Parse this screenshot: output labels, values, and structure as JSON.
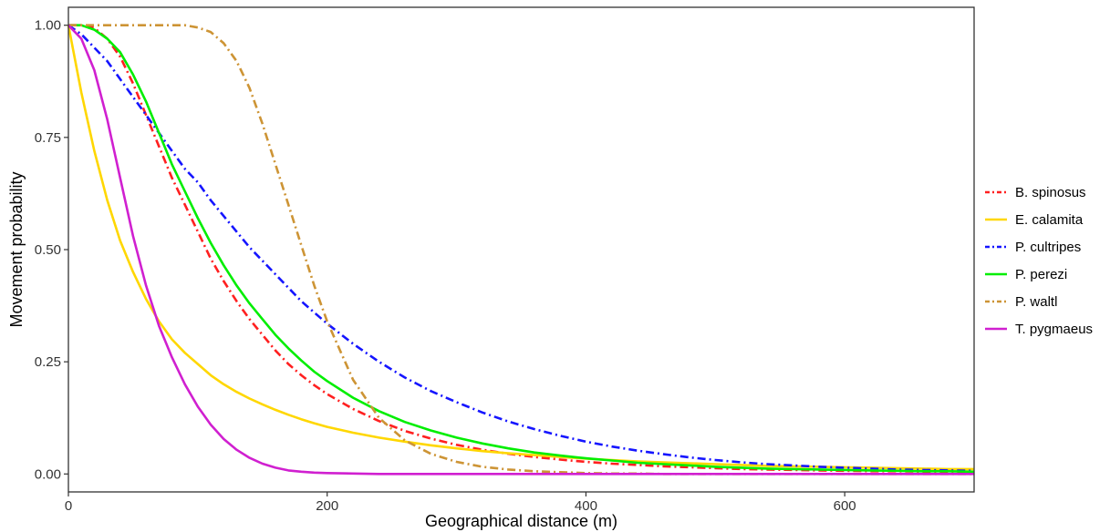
{
  "chart_data": {
    "type": "line",
    "title": "",
    "xlabel": "Geographical distance (m)",
    "ylabel": "Movement probability",
    "xlim": [
      0,
      700
    ],
    "ylim": [
      -0.04,
      1.04
    ],
    "xticks": [
      0,
      200,
      400,
      600
    ],
    "xtick_labels": [
      "0",
      "200",
      "400",
      "600"
    ],
    "yticks": [
      0,
      0.25,
      0.5,
      0.75,
      1.0
    ],
    "ytick_labels": [
      "0.00",
      "0.25",
      "0.50",
      "0.75",
      "1.00"
    ],
    "grid": false,
    "legend_position": "right",
    "x": [
      0,
      10,
      20,
      30,
      40,
      50,
      60,
      70,
      80,
      90,
      100,
      110,
      120,
      130,
      140,
      150,
      160,
      170,
      180,
      190,
      200,
      220,
      240,
      260,
      280,
      300,
      320,
      340,
      360,
      380,
      400,
      420,
      440,
      460,
      480,
      500,
      520,
      540,
      560,
      580,
      600,
      620,
      640,
      660,
      680,
      700
    ],
    "series": [
      {
        "name": "B. spinosus",
        "color": "#ff2020",
        "dash": "dashdot",
        "values": [
          1.0,
          1.0,
          0.994,
          0.97,
          0.93,
          0.87,
          0.8,
          0.73,
          0.66,
          0.6,
          0.54,
          0.48,
          0.43,
          0.385,
          0.345,
          0.31,
          0.275,
          0.245,
          0.22,
          0.198,
          0.178,
          0.145,
          0.118,
          0.096,
          0.079,
          0.065,
          0.054,
          0.045,
          0.038,
          0.032,
          0.027,
          0.023,
          0.02,
          0.017,
          0.015,
          0.013,
          0.011,
          0.01,
          0.009,
          0.008,
          0.007,
          0.006,
          0.006,
          0.005,
          0.005,
          0.005
        ]
      },
      {
        "name": "E. calamita",
        "color": "#ffd700",
        "dash": "solid",
        "values": [
          1.0,
          0.85,
          0.72,
          0.61,
          0.52,
          0.45,
          0.39,
          0.34,
          0.3,
          0.27,
          0.245,
          0.22,
          0.2,
          0.183,
          0.168,
          0.155,
          0.143,
          0.132,
          0.122,
          0.113,
          0.105,
          0.092,
          0.081,
          0.072,
          0.064,
          0.057,
          0.051,
          0.046,
          0.042,
          0.038,
          0.034,
          0.031,
          0.028,
          0.026,
          0.024,
          0.022,
          0.02,
          0.018,
          0.017,
          0.016,
          0.015,
          0.014,
          0.013,
          0.012,
          0.011,
          0.011
        ]
      },
      {
        "name": "P. cultripes",
        "color": "#1515ff",
        "dash": "dashdot",
        "values": [
          1.0,
          0.98,
          0.95,
          0.92,
          0.88,
          0.84,
          0.8,
          0.76,
          0.72,
          0.68,
          0.65,
          0.61,
          0.575,
          0.54,
          0.505,
          0.475,
          0.445,
          0.415,
          0.385,
          0.36,
          0.335,
          0.29,
          0.25,
          0.215,
          0.185,
          0.16,
          0.137,
          0.117,
          0.1,
          0.085,
          0.072,
          0.061,
          0.052,
          0.044,
          0.037,
          0.031,
          0.026,
          0.022,
          0.019,
          0.016,
          0.014,
          0.012,
          0.01,
          0.009,
          0.008,
          0.007
        ]
      },
      {
        "name": "P. perezi",
        "color": "#00ee00",
        "dash": "solid",
        "values": [
          1.0,
          1.0,
          0.99,
          0.97,
          0.94,
          0.89,
          0.83,
          0.76,
          0.69,
          0.63,
          0.57,
          0.515,
          0.465,
          0.42,
          0.38,
          0.345,
          0.31,
          0.28,
          0.253,
          0.228,
          0.207,
          0.17,
          0.14,
          0.116,
          0.097,
          0.081,
          0.068,
          0.057,
          0.048,
          0.041,
          0.035,
          0.03,
          0.025,
          0.022,
          0.019,
          0.016,
          0.014,
          0.012,
          0.011,
          0.01,
          0.009,
          0.008,
          0.007,
          0.006,
          0.006,
          0.005
        ]
      },
      {
        "name": "P. waltl",
        "color": "#cd9435",
        "dash": "dashdot",
        "values": [
          1.0,
          1.0,
          1.0,
          1.0,
          1.0,
          1.0,
          1.0,
          1.0,
          1.0,
          1.0,
          0.995,
          0.985,
          0.96,
          0.92,
          0.86,
          0.78,
          0.69,
          0.6,
          0.51,
          0.42,
          0.34,
          0.21,
          0.125,
          0.075,
          0.045,
          0.027,
          0.016,
          0.01,
          0.006,
          0.004,
          0.002,
          0.001,
          0.001,
          0.0,
          0.0,
          0.0,
          0.0,
          0.0,
          0.0,
          0.0,
          0.0,
          0.0,
          0.0,
          0.0,
          0.0,
          0.0
        ]
      },
      {
        "name": "T. pygmaeus",
        "color": "#d020d0",
        "dash": "solid",
        "values": [
          1.0,
          0.97,
          0.9,
          0.79,
          0.66,
          0.53,
          0.42,
          0.33,
          0.26,
          0.2,
          0.15,
          0.11,
          0.078,
          0.054,
          0.036,
          0.023,
          0.014,
          0.008,
          0.005,
          0.003,
          0.002,
          0.001,
          0.0,
          0.0,
          0.0,
          0.0,
          0.0,
          0.0,
          0.0,
          0.0,
          0.0,
          0.0,
          0.0,
          0.0,
          0.0,
          0.0,
          0.0,
          0.0,
          0.0,
          0.0,
          0.0,
          0.0,
          0.0,
          0.0,
          0.0,
          0.0
        ]
      }
    ]
  }
}
